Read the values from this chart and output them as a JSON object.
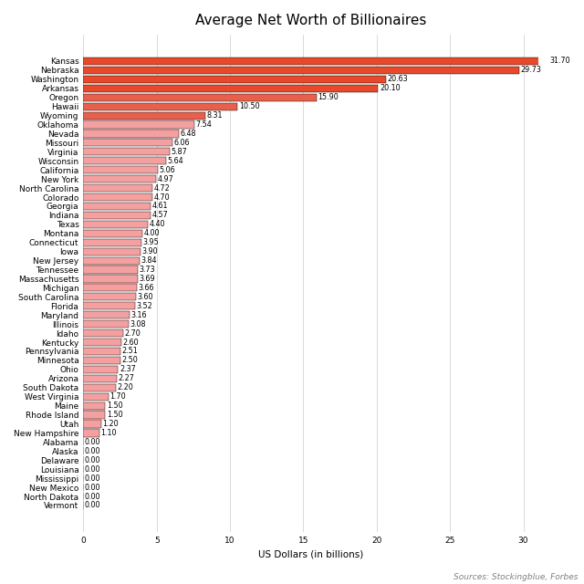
{
  "title": "Average Net Worth of Billionaires",
  "xlabel": "US Dollars (in billions)",
  "source": "Sources: Stockingblue, Forbes",
  "states": [
    "Kansas",
    "Nebraska",
    "Washington",
    "Arkansas",
    "Oregon",
    "Hawaii",
    "Wyoming",
    "Oklahoma",
    "Nevada",
    "Missouri",
    "Virginia",
    "Wisconsin",
    "California",
    "New York",
    "North Carolina",
    "Colorado",
    "Georgia",
    "Indiana",
    "Texas",
    "Montana",
    "Connecticut",
    "Iowa",
    "New Jersey",
    "Tennessee",
    "Massachusetts",
    "Michigan",
    "South Carolina",
    "Florida",
    "Maryland",
    "Illinois",
    "Idaho",
    "Kentucky",
    "Pennsylvania",
    "Minnesota",
    "Ohio",
    "Arizona",
    "South Dakota",
    "West Virginia",
    "Maine",
    "Rhode Island",
    "Utah",
    "New Hampshire",
    "Alabama",
    "Alaska",
    "Delaware",
    "Louisiana",
    "Mississippi",
    "New Mexico",
    "North Dakota",
    "Vermont"
  ],
  "values": [
    31.7,
    29.73,
    20.63,
    20.1,
    15.9,
    10.5,
    8.31,
    7.54,
    6.48,
    6.06,
    5.87,
    5.64,
    5.06,
    4.97,
    4.72,
    4.7,
    4.61,
    4.57,
    4.4,
    4.0,
    3.95,
    3.9,
    3.84,
    3.73,
    3.69,
    3.66,
    3.6,
    3.52,
    3.16,
    3.08,
    2.7,
    2.6,
    2.51,
    2.5,
    2.37,
    2.27,
    2.2,
    1.7,
    1.5,
    1.5,
    1.2,
    1.1,
    0.0,
    0.0,
    0.0,
    0.0,
    0.0,
    0.0,
    0.0,
    0.0
  ],
  "colors": {
    "high": "#e8492a",
    "medium": "#e8604c",
    "low": "#f4a0a0"
  },
  "xlim": [
    0,
    31
  ],
  "bar_height": 0.82,
  "title_fontsize": 11,
  "tick_fontsize": 6.5,
  "label_fontsize": 7.5,
  "value_fontsize": 5.8,
  "source_fontsize": 6.5
}
